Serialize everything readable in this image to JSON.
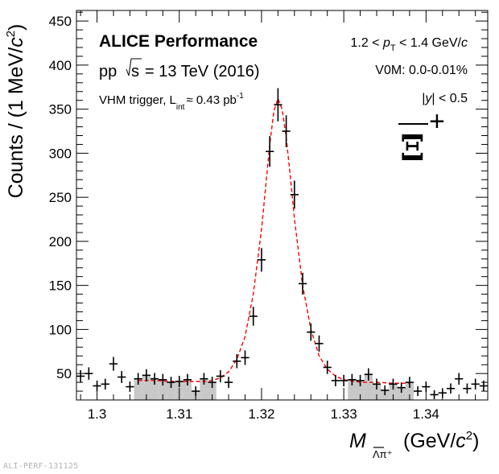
{
  "chart_data": {
    "type": "scatter",
    "title": "ALICE Performance",
    "annotations": {
      "system": "pp",
      "sqrt_s": "s",
      "energy": "= 13 TeV (2016)",
      "trigger_prefix": "VHM trigger, L",
      "trigger_sub": "int",
      "trigger_suffix": "≈ 0.43 pb",
      "trigger_sup": "-1",
      "pt_range_pre": "1.2 < ",
      "pt_var": "p",
      "pt_sub": "T",
      "pt_range_post": " < 1.4 GeV/",
      "pt_unit_c": "c",
      "centrality": "V0M: 0.0-0.01%",
      "rapidity_pre": "|",
      "rapidity_var": "y",
      "rapidity_post": "| < 0.5",
      "particle_symbol": "Ξ",
      "particle_charge": "+"
    },
    "xlabel": {
      "var": "M",
      "sub": "Λπ⁺",
      "unit": "(GeV/",
      "unit_c": "c",
      "unit_sup": "2",
      "unit_close": ")"
    },
    "ylabel": {
      "main": "Counts / (1 MeV/",
      "c": "c",
      "sup": "2",
      "close": ")"
    },
    "xlim": [
      1.2975,
      1.3475
    ],
    "ylim": [
      20,
      462
    ],
    "x_ticks": [
      1.3,
      1.31,
      1.32,
      1.33,
      1.34
    ],
    "x_tick_labels": [
      "1.3",
      "1.31",
      "1.32",
      "1.33",
      "1.34"
    ],
    "y_ticks": [
      50,
      100,
      150,
      200,
      250,
      300,
      350,
      400,
      450
    ],
    "y_tick_labels": [
      "50",
      "100",
      "150",
      "200",
      "250",
      "300",
      "350",
      "400",
      "450"
    ],
    "grid": false,
    "series": [
      {
        "name": "Data",
        "color": "#000000",
        "x": [
          1.298,
          1.299,
          1.3,
          1.301,
          1.302,
          1.303,
          1.304,
          1.305,
          1.306,
          1.307,
          1.308,
          1.309,
          1.31,
          1.311,
          1.312,
          1.313,
          1.314,
          1.315,
          1.316,
          1.317,
          1.318,
          1.319,
          1.32,
          1.321,
          1.322,
          1.323,
          1.324,
          1.325,
          1.326,
          1.327,
          1.328,
          1.329,
          1.33,
          1.331,
          1.332,
          1.333,
          1.334,
          1.335,
          1.336,
          1.337,
          1.338,
          1.339,
          1.34,
          1.341,
          1.342,
          1.343,
          1.344,
          1.345,
          1.346,
          1.347
        ],
        "y": [
          47,
          50,
          36,
          38,
          61,
          46,
          35,
          44,
          48,
          44,
          43,
          40,
          41,
          43,
          30,
          44,
          40,
          47,
          40,
          64,
          68,
          115,
          179,
          302,
          355,
          325,
          253,
          152,
          97,
          84,
          57,
          42,
          42,
          43,
          42,
          49,
          38,
          31,
          38,
          34,
          40,
          30,
          35,
          26,
          28,
          33,
          44,
          33,
          38,
          36
        ]
      },
      {
        "name": "Fit",
        "color": "#ff0000",
        "style": "dashed",
        "x": [
          1.305,
          1.307,
          1.309,
          1.311,
          1.313,
          1.314,
          1.315,
          1.316,
          1.317,
          1.318,
          1.319,
          1.32,
          1.3205,
          1.321,
          1.3215,
          1.322,
          1.3225,
          1.323,
          1.3235,
          1.324,
          1.325,
          1.326,
          1.327,
          1.328,
          1.329,
          1.33,
          1.332,
          1.334,
          1.336,
          1.338
        ],
        "y": [
          42,
          42,
          41,
          41,
          41,
          42,
          45,
          52,
          66,
          92,
          140,
          214,
          262,
          310,
          348,
          362,
          350,
          318,
          274,
          226,
          150,
          100,
          70,
          55,
          47,
          43,
          40,
          40,
          39,
          39
        ]
      }
    ],
    "sidebands": [
      {
        "x_range": [
          1.305,
          1.314
        ],
        "color": "#c8c8c8"
      },
      {
        "x_range": [
          1.331,
          1.338
        ],
        "color": "#c8c8c8"
      }
    ],
    "watermark": "ALI-PERF-131125"
  }
}
